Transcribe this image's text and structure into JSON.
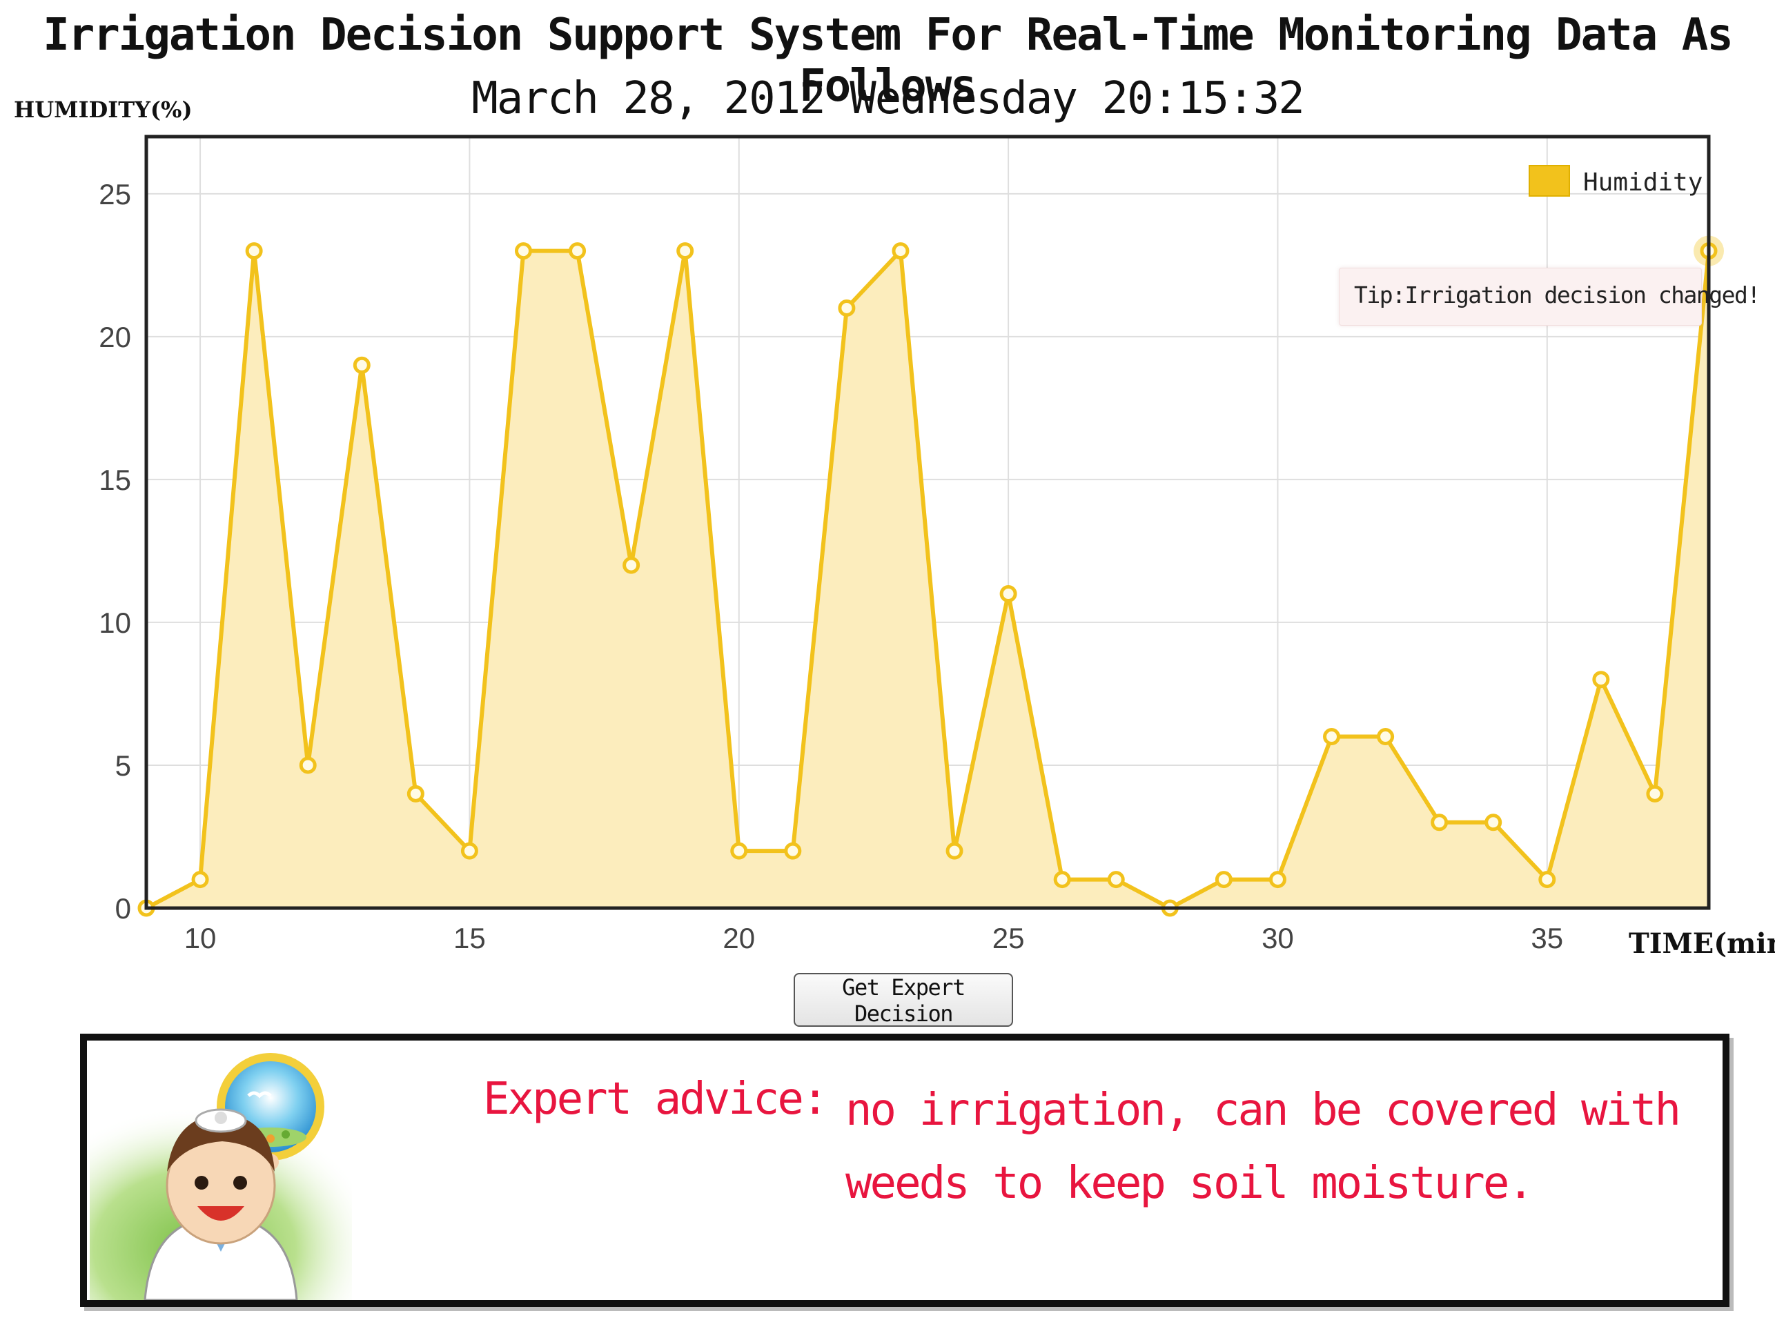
{
  "header": {
    "title": "Irrigation Decision Support System For Real-Time Monitoring Data As Follows",
    "datetime": "March 28, 2012 Wednesday 20:15:32"
  },
  "colors": {
    "line": "#f2c21c",
    "area": "#fcedbd",
    "marker_fill": "#fffbe6",
    "advice_text": "#e8153f"
  },
  "chart_data": {
    "type": "area",
    "xlabel": "TIME(min)",
    "ylabel": "HUMIDITY(%)",
    "xlim": [
      9,
      38
    ],
    "ylim": [
      0,
      27
    ],
    "xticks": [
      10,
      15,
      20,
      25,
      30,
      35
    ],
    "yticks": [
      0,
      5,
      10,
      15,
      20,
      25
    ],
    "grid": true,
    "legend_position": "top-right",
    "series": [
      {
        "name": "Humidity",
        "x": [
          9,
          10,
          11,
          12,
          13,
          14,
          15,
          16,
          17,
          18,
          19,
          20,
          21,
          22,
          23,
          24,
          25,
          26,
          27,
          28,
          29,
          30,
          31,
          32,
          33,
          34,
          35,
          36,
          37,
          38
        ],
        "y": [
          0,
          1,
          23,
          5,
          19,
          4,
          2,
          23,
          23,
          12,
          23,
          2,
          2,
          21,
          23,
          2,
          11,
          1,
          1,
          0,
          1,
          1,
          6,
          6,
          3,
          3,
          1,
          8,
          4,
          23
        ]
      }
    ],
    "annotation": "Tip:Irrigation decision changed!"
  },
  "controls": {
    "expert_button_label": "Get Expert Decision"
  },
  "advice": {
    "label": "Expert advice:",
    "text": "no irrigation, can be covered with weeds to keep soil moisture."
  },
  "icons": {
    "doctor": "doctor-illustration-icon"
  }
}
